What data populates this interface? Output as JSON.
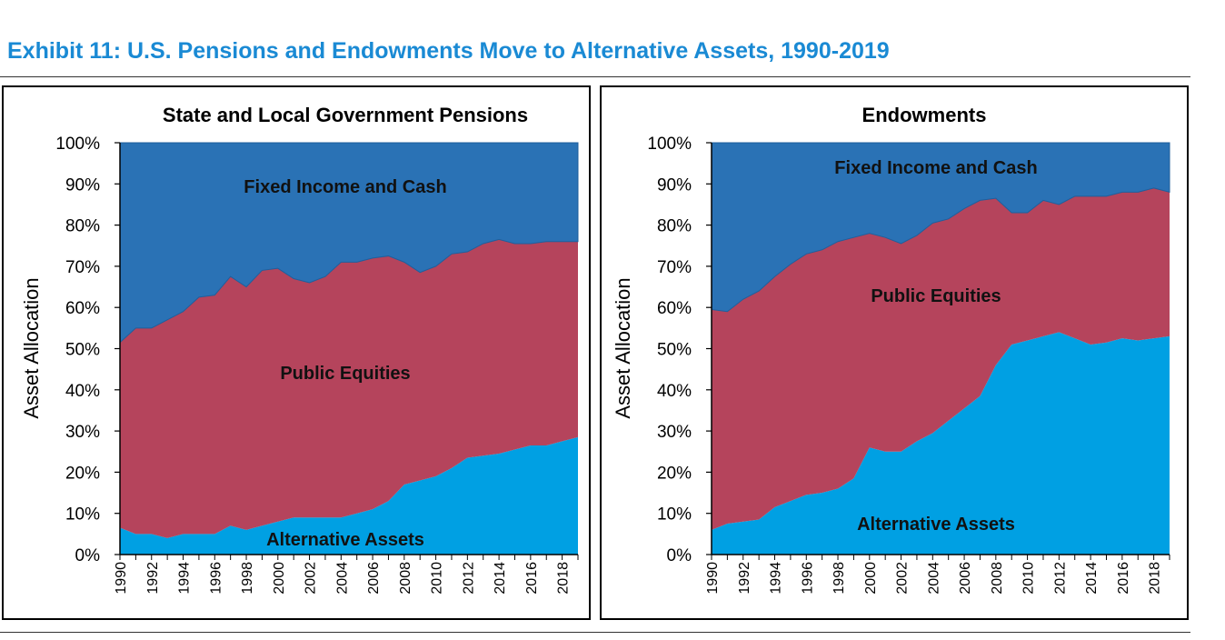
{
  "header": {
    "title": "Exhibit 11: U.S. Pensions and Endowments Move to Alternative Assets, 1990-2019"
  },
  "colors": {
    "fixed_income": "#2a72b5",
    "public_equities": "#b5445c",
    "alternative": "#00a0e3",
    "title": "#1a8ad4"
  },
  "chart_data": [
    {
      "type": "area",
      "stacked": true,
      "title": "State and Local Government Pensions",
      "ylabel": "Asset Allocation",
      "xlabel": "",
      "ylim": [
        0,
        100
      ],
      "yticks": [
        "0%",
        "10%",
        "20%",
        "30%",
        "40%",
        "50%",
        "60%",
        "70%",
        "80%",
        "90%",
        "100%"
      ],
      "xticks": [
        "1990",
        "1992",
        "1994",
        "1996",
        "1998",
        "2000",
        "2002",
        "2004",
        "2006",
        "2008",
        "2010",
        "2012",
        "2014",
        "2016",
        "2018"
      ],
      "x": [
        1990,
        1991,
        1992,
        1993,
        1994,
        1995,
        1996,
        1997,
        1998,
        1999,
        2000,
        2001,
        2002,
        2003,
        2004,
        2005,
        2006,
        2007,
        2008,
        2009,
        2010,
        2011,
        2012,
        2013,
        2014,
        2015,
        2016,
        2017,
        2018,
        2019
      ],
      "series": [
        {
          "name": "Alternative Assets",
          "label": "Alternative Assets",
          "values": [
            6.5,
            5,
            5,
            4,
            5,
            5,
            5,
            7,
            6,
            7,
            8,
            9,
            9,
            9,
            9,
            10,
            11,
            13,
            17,
            18,
            19,
            21,
            23.5,
            24,
            24.5,
            25.5,
            26.5,
            26.5,
            27.5,
            28.5
          ]
        },
        {
          "name": "Public Equities",
          "label": "Public Equities",
          "values": [
            45,
            50,
            50,
            53,
            54,
            57.5,
            58,
            60.5,
            59,
            62,
            61.5,
            58,
            57,
            58.5,
            62,
            61,
            61,
            59.5,
            54,
            50.5,
            51,
            52,
            50,
            51.5,
            52,
            50,
            49,
            49.5,
            48.5,
            47.5
          ]
        },
        {
          "name": "Fixed Income and Cash",
          "label": "Fixed Income and Cash",
          "values": [
            48.5,
            45,
            45,
            43,
            41,
            37.5,
            37,
            32.5,
            35,
            31,
            30.5,
            33,
            34,
            32.5,
            29,
            29,
            28,
            27.5,
            29,
            31.5,
            30,
            27,
            26.5,
            24.5,
            23.5,
            24.5,
            24.5,
            24,
            24,
            24
          ]
        }
      ]
    },
    {
      "type": "area",
      "stacked": true,
      "title": "Endowments",
      "ylabel": "Asset Allocation",
      "xlabel": "",
      "ylim": [
        0,
        100
      ],
      "yticks": [
        "0%",
        "10%",
        "20%",
        "30%",
        "40%",
        "50%",
        "60%",
        "70%",
        "80%",
        "90%",
        "100%"
      ],
      "xticks": [
        "1990",
        "1992",
        "1994",
        "1996",
        "1998",
        "2000",
        "2002",
        "2004",
        "2006",
        "2008",
        "2010",
        "2012",
        "2014",
        "2016",
        "2018"
      ],
      "x": [
        1990,
        1991,
        1992,
        1993,
        1994,
        1995,
        1996,
        1997,
        1998,
        1999,
        2000,
        2001,
        2002,
        2003,
        2004,
        2005,
        2006,
        2007,
        2008,
        2009,
        2010,
        2011,
        2012,
        2013,
        2014,
        2015,
        2016,
        2017,
        2018,
        2019
      ],
      "series": [
        {
          "name": "Alternative Assets",
          "label": "Alternative Assets",
          "values": [
            6,
            7.5,
            8,
            8.5,
            11.5,
            13,
            14.5,
            15,
            16,
            18.5,
            26,
            25,
            25,
            27.5,
            29.5,
            32.5,
            35.5,
            38.5,
            46,
            51,
            52,
            53,
            54,
            52.5,
            51,
            51.5,
            52.5,
            52,
            52.5,
            53
          ]
        },
        {
          "name": "Public Equities",
          "label": "Public Equities",
          "values": [
            53.5,
            51.5,
            54,
            55.5,
            56,
            57.5,
            58.5,
            59,
            60,
            58.5,
            52,
            52,
            50.5,
            50,
            51,
            49,
            48.5,
            47.5,
            40.5,
            32,
            31,
            33,
            31,
            34.5,
            36,
            35.5,
            35.5,
            36,
            36.5,
            35
          ]
        },
        {
          "name": "Fixed Income and Cash",
          "label": "Fixed Income and Cash",
          "values": [
            40.5,
            41,
            38,
            36,
            32.5,
            29.5,
            27,
            26,
            24,
            23,
            22,
            23,
            24.5,
            22.5,
            19.5,
            18.5,
            16,
            14,
            13.5,
            17,
            17,
            14,
            15,
            13,
            13,
            13,
            12,
            12,
            11,
            12
          ]
        }
      ]
    }
  ]
}
